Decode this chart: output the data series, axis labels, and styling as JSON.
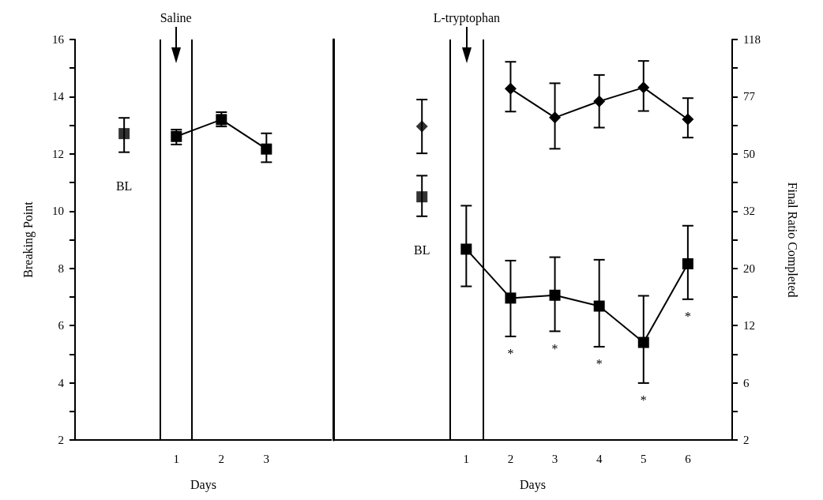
{
  "chart_data": [
    {
      "type": "line",
      "xlabel": "Days",
      "ylabel": "Breaking Point",
      "xlim": [
        -1.25,
        4.45
      ],
      "xticks": [
        1,
        2,
        3
      ],
      "ylim": [
        2,
        16
      ],
      "yticks": [
        2,
        {
          "value": 3,
          "label": null
        },
        4,
        {
          "value": 5,
          "label": null
        },
        6,
        {
          "value": 7,
          "label": null
        },
        8,
        {
          "value": 9,
          "label": null
        },
        10,
        {
          "value": 11,
          "label": null
        },
        12,
        {
          "value": 13,
          "label": null
        },
        14,
        {
          "value": 15,
          "label": null
        },
        16
      ],
      "marker": "square",
      "line_style": "solid",
      "series": [
        {
          "type": "scatter",
          "color": "#000000",
          "x": [
            -0.16
          ],
          "values": [
            12.71
          ],
          "errors": [
            [
              12.06,
              13.26
            ]
          ]
        },
        {
          "color": "#000000",
          "x": [
            1,
            2,
            3
          ],
          "values": [
            12.61,
            13.2,
            12.17
          ],
          "errors": [
            [
              12.33,
              12.85
            ],
            [
              12.96,
              13.46
            ],
            [
              11.71,
              12.72
            ]
          ]
        }
      ],
      "ref_lines": [
        {
          "axis": "x",
          "value": 0.64,
          "color": "#000000",
          "label": "Saline"
        },
        {
          "axis": "x",
          "value": 1.34,
          "color": "#000000"
        }
      ],
      "annotations": [
        "BL"
      ]
    },
    {
      "type": "line",
      "xlabel": "Days",
      "y2label": "Final Ratio Completed",
      "xlim": [
        -2,
        7
      ],
      "xticks": [
        1,
        2,
        3,
        4,
        5,
        6
      ],
      "ylim": [
        2,
        16
      ],
      "tick_labels": "x",
      "y2_categories": [
        "118",
        null,
        "77",
        null,
        "50",
        null,
        "32",
        null,
        "20",
        null,
        "12",
        null,
        "6",
        null,
        "2"
      ],
      "line_style": "solid",
      "series": [
        {
          "type": "scatter",
          "marker": "diamond",
          "color": "#000000",
          "x": [
            0
          ],
          "values": [
            12.96
          ],
          "errors": [
            [
              12.02,
              13.9
            ]
          ]
        },
        {
          "marker": "diamond",
          "color": "#000000",
          "x": [
            2,
            3,
            4,
            5,
            6
          ],
          "values": [
            14.28,
            13.27,
            13.84,
            14.32,
            13.21
          ],
          "errors": [
            [
              13.48,
              15.22
            ],
            [
              12.18,
              14.47
            ],
            [
              12.92,
              14.76
            ],
            [
              13.5,
              15.25
            ],
            [
              12.57,
              13.95
            ]
          ]
        },
        {
          "type": "scatter",
          "marker": "square",
          "color": "#000000",
          "x": [
            0
          ],
          "values": [
            10.5
          ],
          "errors": [
            [
              9.82,
              11.24
            ]
          ]
        },
        {
          "marker": "square",
          "color": "#000000",
          "x": [
            1,
            2,
            3,
            4,
            5,
            6
          ],
          "values": [
            8.67,
            6.96,
            7.06,
            6.68,
            5.41,
            8.16
          ],
          "errors": [
            [
              7.37,
              10.19
            ],
            [
              5.62,
              8.27
            ],
            [
              5.8,
              8.39
            ],
            [
              5.26,
              8.3
            ],
            [
              3.99,
              7.04
            ],
            [
              6.92,
              9.49
            ]
          ]
        }
      ],
      "ref_lines": [
        {
          "axis": "x",
          "value": 0.64,
          "color": "#000000",
          "label": "L-tryptophan"
        },
        {
          "axis": "x",
          "value": 1.38,
          "color": "#000000"
        }
      ],
      "annotations": [
        "BL",
        {
          "text": "*",
          "x": 2,
          "y": 5.62
        },
        {
          "text": "*",
          "x": 3,
          "y": 5.8
        },
        {
          "text": "*",
          "x": 4,
          "y": 5.26
        },
        {
          "text": "*",
          "x": 5,
          "y": 3.99
        },
        {
          "text": "*",
          "x": 6,
          "y": 6.92
        }
      ]
    }
  ]
}
